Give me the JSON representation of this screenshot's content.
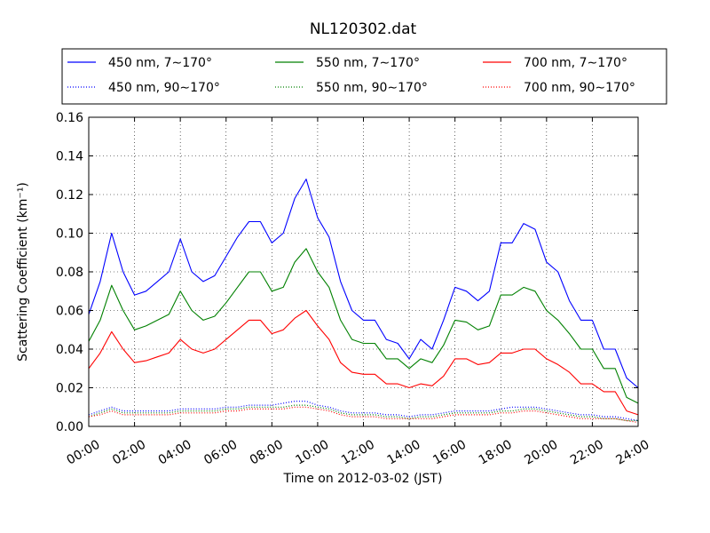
{
  "chart_data": {
    "type": "line",
    "title": "NL120302.dat",
    "xlabel": "Time on 2012-03-02 (JST)",
    "ylabel": "Scattering Coefficient (km⁻¹)",
    "xlim": [
      "00:00",
      "24:00"
    ],
    "ylim": [
      0.0,
      0.16
    ],
    "grid": true,
    "legend_position": "top",
    "x_ticks": [
      "00:00",
      "02:00",
      "04:00",
      "06:00",
      "08:00",
      "10:00",
      "12:00",
      "14:00",
      "16:00",
      "18:00",
      "20:00",
      "22:00",
      "24:00"
    ],
    "y_ticks": [
      "0.00",
      "0.02",
      "0.04",
      "0.06",
      "0.08",
      "0.10",
      "0.12",
      "0.14",
      "0.16"
    ],
    "x": [
      "00:00",
      "00:30",
      "01:00",
      "01:30",
      "02:00",
      "02:30",
      "03:00",
      "03:30",
      "04:00",
      "04:30",
      "05:00",
      "05:30",
      "06:00",
      "06:30",
      "07:00",
      "07:30",
      "08:00",
      "08:30",
      "09:00",
      "09:30",
      "10:00",
      "10:30",
      "11:00",
      "11:30",
      "12:00",
      "12:30",
      "13:00",
      "13:30",
      "14:00",
      "14:30",
      "15:00",
      "15:30",
      "16:00",
      "16:30",
      "17:00",
      "17:30",
      "18:00",
      "18:30",
      "19:00",
      "19:30",
      "20:00",
      "20:30",
      "21:00",
      "21:30",
      "22:00",
      "22:30",
      "23:00",
      "23:30",
      "24:00"
    ],
    "series": [
      {
        "name": "450 nm, 7∼170°",
        "color": "#0000ff",
        "style": "solid",
        "values": [
          0.058,
          0.075,
          0.1,
          0.08,
          0.068,
          0.07,
          0.075,
          0.08,
          0.097,
          0.08,
          0.075,
          0.078,
          0.088,
          0.098,
          0.106,
          0.106,
          0.095,
          0.1,
          0.118,
          0.128,
          0.108,
          0.098,
          0.075,
          0.06,
          0.055,
          0.055,
          0.045,
          0.043,
          0.035,
          0.045,
          0.04,
          0.055,
          0.072,
          0.07,
          0.065,
          0.07,
          0.095,
          0.095,
          0.105,
          0.102,
          0.085,
          0.08,
          0.065,
          0.055,
          0.055,
          0.04,
          0.04,
          0.025,
          0.02
        ]
      },
      {
        "name": "550 nm, 7∼170°",
        "color": "#008000",
        "style": "solid",
        "values": [
          0.044,
          0.055,
          0.073,
          0.06,
          0.05,
          0.052,
          0.055,
          0.058,
          0.07,
          0.06,
          0.055,
          0.057,
          0.064,
          0.072,
          0.08,
          0.08,
          0.07,
          0.072,
          0.085,
          0.092,
          0.08,
          0.072,
          0.055,
          0.045,
          0.043,
          0.043,
          0.035,
          0.035,
          0.03,
          0.035,
          0.033,
          0.042,
          0.055,
          0.054,
          0.05,
          0.052,
          0.068,
          0.068,
          0.072,
          0.07,
          0.06,
          0.055,
          0.048,
          0.04,
          0.04,
          0.03,
          0.03,
          0.015,
          0.012
        ]
      },
      {
        "name": "700 nm, 7∼170°",
        "color": "#ff0000",
        "style": "solid",
        "values": [
          0.03,
          0.038,
          0.049,
          0.04,
          0.033,
          0.034,
          0.036,
          0.038,
          0.045,
          0.04,
          0.038,
          0.04,
          0.045,
          0.05,
          0.055,
          0.055,
          0.048,
          0.05,
          0.056,
          0.06,
          0.052,
          0.045,
          0.033,
          0.028,
          0.027,
          0.027,
          0.022,
          0.022,
          0.02,
          0.022,
          0.021,
          0.026,
          0.035,
          0.035,
          0.032,
          0.033,
          0.038,
          0.038,
          0.04,
          0.04,
          0.035,
          0.032,
          0.028,
          0.022,
          0.022,
          0.018,
          0.018,
          0.008,
          0.006
        ]
      },
      {
        "name": "450 nm, 90∼170°",
        "color": "#0000ff",
        "style": "dotted",
        "values": [
          0.006,
          0.008,
          0.01,
          0.008,
          0.008,
          0.008,
          0.008,
          0.008,
          0.009,
          0.009,
          0.009,
          0.009,
          0.01,
          0.01,
          0.011,
          0.011,
          0.011,
          0.012,
          0.013,
          0.013,
          0.011,
          0.01,
          0.008,
          0.007,
          0.007,
          0.007,
          0.006,
          0.006,
          0.005,
          0.006,
          0.006,
          0.007,
          0.008,
          0.008,
          0.008,
          0.008,
          0.009,
          0.01,
          0.01,
          0.01,
          0.009,
          0.008,
          0.007,
          0.006,
          0.006,
          0.005,
          0.005,
          0.004,
          0.003
        ]
      },
      {
        "name": "550 nm, 90∼170°",
        "color": "#008000",
        "style": "dotted",
        "values": [
          0.005,
          0.007,
          0.009,
          0.007,
          0.007,
          0.007,
          0.007,
          0.007,
          0.008,
          0.008,
          0.008,
          0.008,
          0.009,
          0.009,
          0.01,
          0.01,
          0.01,
          0.01,
          0.011,
          0.011,
          0.01,
          0.009,
          0.007,
          0.006,
          0.006,
          0.006,
          0.005,
          0.005,
          0.004,
          0.005,
          0.005,
          0.006,
          0.007,
          0.007,
          0.007,
          0.007,
          0.008,
          0.008,
          0.009,
          0.009,
          0.008,
          0.007,
          0.006,
          0.005,
          0.005,
          0.004,
          0.004,
          0.003,
          0.003
        ]
      },
      {
        "name": "700 nm, 90∼170°",
        "color": "#ff0000",
        "style": "dotted",
        "values": [
          0.005,
          0.006,
          0.008,
          0.006,
          0.006,
          0.006,
          0.006,
          0.006,
          0.007,
          0.007,
          0.007,
          0.007,
          0.008,
          0.008,
          0.009,
          0.009,
          0.009,
          0.009,
          0.01,
          0.01,
          0.009,
          0.008,
          0.006,
          0.005,
          0.005,
          0.005,
          0.004,
          0.004,
          0.004,
          0.004,
          0.004,
          0.005,
          0.006,
          0.006,
          0.006,
          0.006,
          0.007,
          0.007,
          0.008,
          0.008,
          0.007,
          0.006,
          0.005,
          0.004,
          0.004,
          0.004,
          0.004,
          0.003,
          0.002
        ]
      }
    ]
  }
}
